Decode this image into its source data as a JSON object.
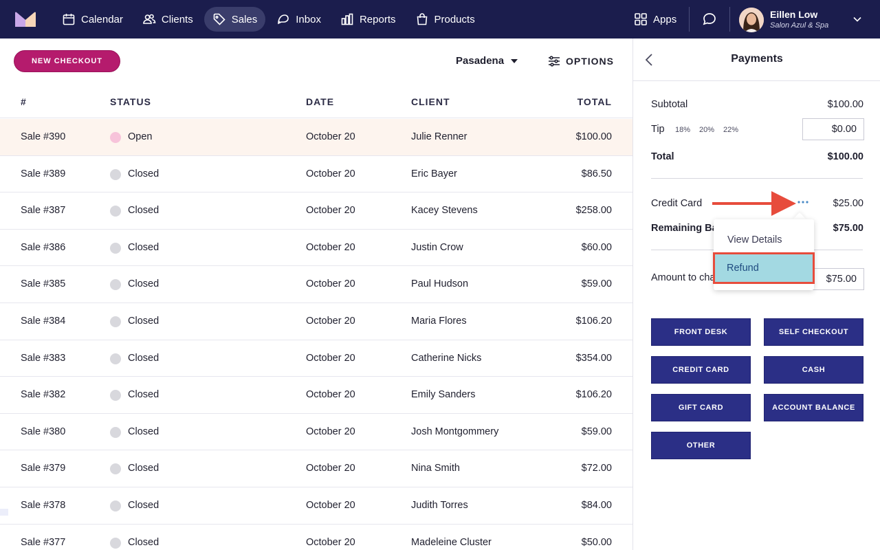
{
  "nav": {
    "items": [
      {
        "label": "Calendar",
        "icon": "calendar-icon"
      },
      {
        "label": "Clients",
        "icon": "users-icon"
      },
      {
        "label": "Sales",
        "icon": "tag-icon",
        "active": true
      },
      {
        "label": "Inbox",
        "icon": "inbox-icon"
      },
      {
        "label": "Reports",
        "icon": "bar-chart-icon"
      },
      {
        "label": "Products",
        "icon": "shopping-bag-icon"
      }
    ],
    "apps_label": "Apps",
    "user": {
      "name": "Eillen Low",
      "business": "Salon Azul & Spa"
    }
  },
  "toolbar": {
    "new_checkout_label": "NEW CHECKOUT",
    "location": "Pasadena",
    "options_label": "OPTIONS"
  },
  "table": {
    "headers": {
      "num": "#",
      "status": "STATUS",
      "date": "DATE",
      "client": "CLIENT",
      "total": "TOTAL"
    },
    "rows": [
      {
        "num": "Sale #390",
        "status": "Open",
        "date": "October 20",
        "client": "Julie Renner",
        "total": "$100.00"
      },
      {
        "num": "Sale #389",
        "status": "Closed",
        "date": "October 20",
        "client": "Eric Bayer",
        "total": "$86.50"
      },
      {
        "num": "Sale #387",
        "status": "Closed",
        "date": "October 20",
        "client": "Kacey Stevens",
        "total": "$258.00"
      },
      {
        "num": "Sale #386",
        "status": "Closed",
        "date": "October 20",
        "client": "Justin Crow",
        "total": "$60.00"
      },
      {
        "num": "Sale #385",
        "status": "Closed",
        "date": "October 20",
        "client": "Paul Hudson",
        "total": "$59.00"
      },
      {
        "num": "Sale #384",
        "status": "Closed",
        "date": "October 20",
        "client": "Maria Flores",
        "total": "$106.20"
      },
      {
        "num": "Sale #383",
        "status": "Closed",
        "date": "October 20",
        "client": "Catherine Nicks",
        "total": "$354.00"
      },
      {
        "num": "Sale #382",
        "status": "Closed",
        "date": "October 20",
        "client": "Emily Sanders",
        "total": "$106.20"
      },
      {
        "num": "Sale #380",
        "status": "Closed",
        "date": "October 20",
        "client": "Josh Montgommery",
        "total": "$59.00"
      },
      {
        "num": "Sale #379",
        "status": "Closed",
        "date": "October 20",
        "client": "Nina Smith",
        "total": "$72.00"
      },
      {
        "num": "Sale #378",
        "status": "Closed",
        "date": "October 20",
        "client": "Judith Torres",
        "total": "$84.00"
      },
      {
        "num": "Sale #377",
        "status": "Closed",
        "date": "October 20",
        "client": "Madeleine Cluster",
        "total": "$50.00"
      }
    ]
  },
  "payments": {
    "title": "Payments",
    "subtotal_label": "Subtotal",
    "subtotal": "$100.00",
    "tip_label": "Tip",
    "tip_options": [
      "18%",
      "20%",
      "22%"
    ],
    "tip_value": "$0.00",
    "total_label": "Total",
    "total": "$100.00",
    "credit_card_label": "Credit Card",
    "credit_card_amount": "$25.00",
    "remaining_label": "Remaining Ba",
    "remaining_amount": "$75.00",
    "amount_label": "Amount to cha",
    "amount_value": "$75.00",
    "menu": {
      "view_details": "View Details",
      "refund": "Refund"
    },
    "methods": [
      "FRONT DESK",
      "SELF CHECKOUT",
      "CREDIT CARD",
      "CASH",
      "GIFT CARD",
      "ACCOUNT BALANCE",
      "OTHER"
    ]
  },
  "colors": {
    "nav_bg": "#1b1d4d",
    "accent": "#b51b6d",
    "button": "#2b2f86",
    "highlight": "#a3d9e2",
    "annotation": "#e74c3c"
  }
}
